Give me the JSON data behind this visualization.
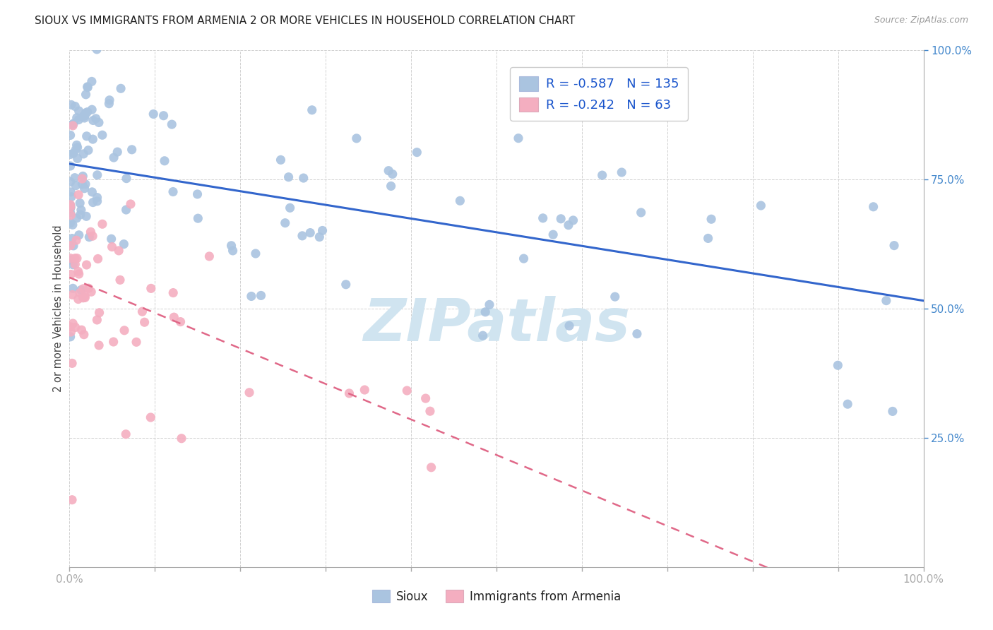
{
  "title": "SIOUX VS IMMIGRANTS FROM ARMENIA 2 OR MORE VEHICLES IN HOUSEHOLD CORRELATION CHART",
  "source": "Source: ZipAtlas.com",
  "ylabel": "2 or more Vehicles in Household",
  "legend_label1": "Sioux",
  "legend_label2": "Immigrants from Armenia",
  "sioux_color": "#aac4e0",
  "armenia_color": "#f4aec0",
  "sioux_line_color": "#3366cc",
  "armenia_line_color": "#e06888",
  "background_color": "#ffffff",
  "grid_color": "#cccccc",
  "watermark": "ZIPatlas",
  "watermark_color": "#d0e4f0",
  "sioux_R": -0.587,
  "sioux_N": 135,
  "armenia_R": -0.242,
  "armenia_N": 63,
  "title_color": "#222222",
  "source_color": "#999999",
  "tick_color_y": "#4488cc",
  "tick_color_x": "#4488cc"
}
